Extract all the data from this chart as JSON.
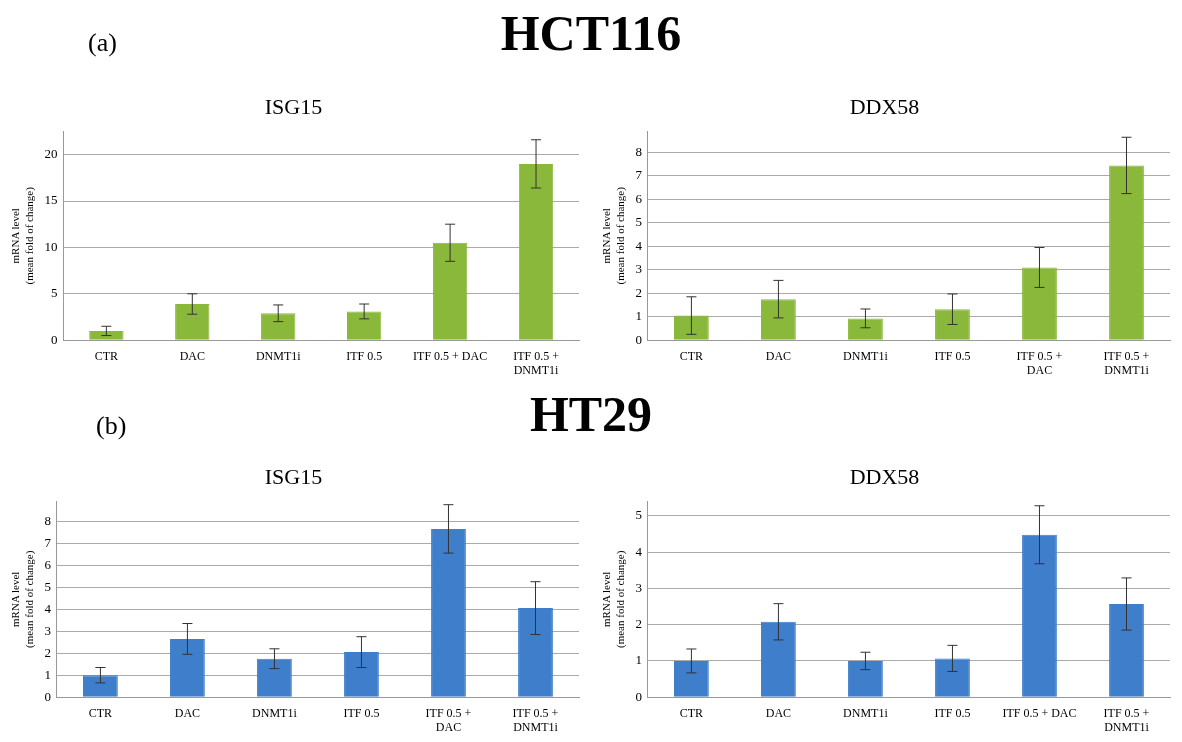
{
  "chart_data": [
    {
      "type": "bar",
      "title": "ISG15",
      "annotations": [
        "(a)",
        "HCT116"
      ],
      "ylabel": "mRNA level\n(mean fold of change)",
      "categories": [
        "CTR",
        "DAC",
        "DNMT1i",
        "ITF 0.5",
        "ITF 0.5 + DAC",
        "ITF 0.5 +\nDNMT1i"
      ],
      "color": "#8ab83a",
      "values": [
        1.0,
        3.9,
        2.9,
        3.1,
        10.5,
        19.0
      ],
      "errors": [
        0.5,
        1.1,
        0.9,
        0.8,
        2.0,
        2.6
      ],
      "ylim": [
        0,
        22.5
      ],
      "yticks": [
        0,
        5,
        10,
        15,
        20
      ],
      "grid": "y",
      "legend": false
    },
    {
      "type": "bar",
      "title": "DDX58",
      "ylabel": "mRNA level\n(mean fold of change)",
      "categories": [
        "CTR",
        "DAC",
        "DNMT1i",
        "ITF 0.5",
        "ITF 0.5 +\nDAC",
        "ITF 0.5 +\nDNMT1i"
      ],
      "color": "#8ab83a",
      "values": [
        1.05,
        1.75,
        0.93,
        1.32,
        3.1,
        7.45
      ],
      "errors": [
        0.8,
        0.8,
        0.4,
        0.65,
        0.85,
        1.2
      ],
      "ylim": [
        0,
        8.9
      ],
      "yticks": [
        0,
        1,
        2,
        3,
        4,
        5,
        6,
        7,
        8
      ],
      "grid": "y",
      "legend": false
    },
    {
      "type": "bar",
      "title": "ISG15",
      "annotations": [
        "(b)",
        "HT29"
      ],
      "ylabel": "mRNA level\n(mean fold of change)",
      "categories": [
        "CTR",
        "DAC",
        "DNMT1i",
        "ITF 0.5",
        "ITF 0.5 +\nDAC",
        "ITF 0.5 +\nDNMT1i"
      ],
      "color": "#3f7ecb",
      "values": [
        1.0,
        2.65,
        1.75,
        2.05,
        7.65,
        4.05
      ],
      "errors": [
        0.35,
        0.7,
        0.45,
        0.7,
        1.1,
        1.2
      ],
      "ylim": [
        0,
        8.9
      ],
      "yticks": [
        0,
        1,
        2,
        3,
        4,
        5,
        6,
        7,
        8
      ],
      "grid": "y",
      "legend": false
    },
    {
      "type": "bar",
      "title": "DDX58",
      "ylabel": "mRNA level\n(mean fold of change)",
      "categories": [
        "CTR",
        "DAC",
        "DNMT1i",
        "ITF 0.5",
        "ITF 0.5 + DAC",
        "ITF 0.5 +\nDNMT1i"
      ],
      "color": "#3f7ecb",
      "values": [
        1.0,
        2.08,
        1.0,
        1.07,
        4.48,
        2.57
      ],
      "errors": [
        0.33,
        0.5,
        0.24,
        0.36,
        0.8,
        0.72
      ],
      "ylim": [
        0,
        5.4
      ],
      "yticks": [
        0,
        1,
        2,
        3,
        4,
        5
      ],
      "grid": "y",
      "legend": false
    }
  ]
}
